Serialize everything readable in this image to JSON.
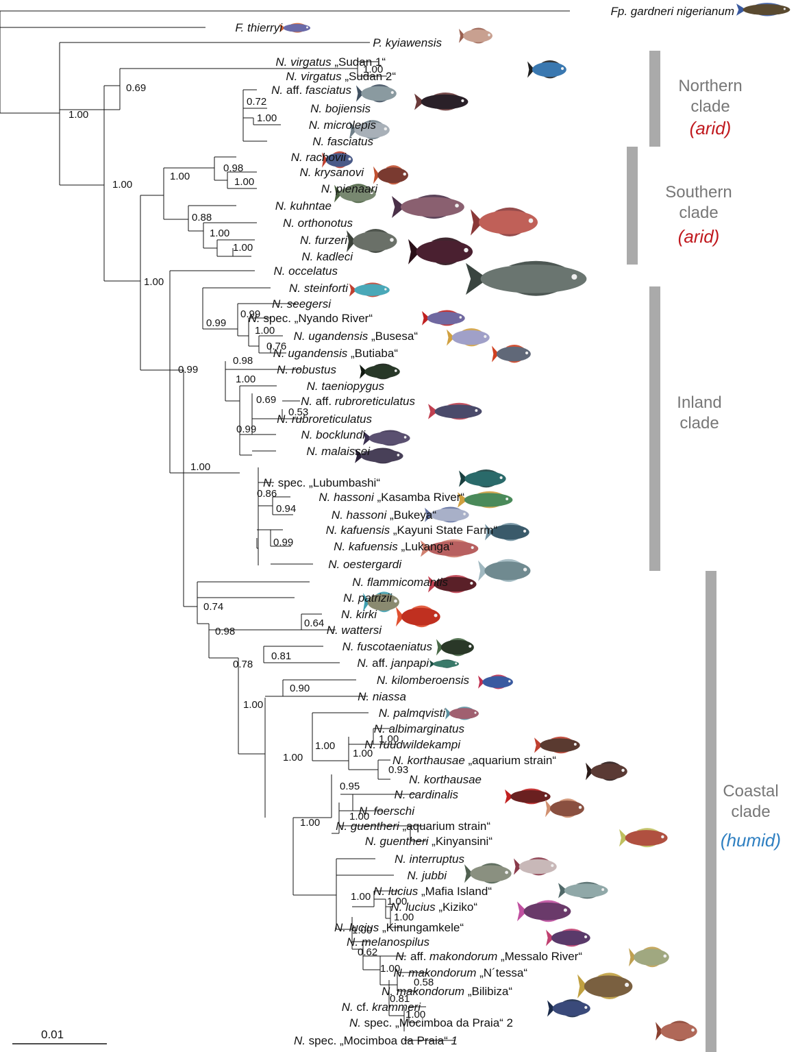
{
  "figure": {
    "scale_bar_label": "0.01",
    "colors": {
      "arid": "#c0191e",
      "humid": "#2e7fc1",
      "clade_bar": "#aaaaaa",
      "clade_label": "#777777"
    }
  },
  "taxa": [
    {
      "g": "Fp.",
      "e": "gardneri nigerianum",
      "q": ""
    },
    {
      "g": "F.",
      "e": "thierryi",
      "q": ""
    },
    {
      "g": "P.",
      "e": "kyiawensis",
      "q": ""
    },
    {
      "g": "N.",
      "e": "virgatus",
      "q": "„Sudan 1“"
    },
    {
      "g": "N.",
      "e": "virgatus",
      "q": "„Sudan 2“"
    },
    {
      "g": "N.",
      "e": "aff. fasciatus",
      "q": ""
    },
    {
      "g": "N.",
      "e": "bojiensis",
      "q": ""
    },
    {
      "g": "N.",
      "e": "microlepis",
      "q": ""
    },
    {
      "g": "N.",
      "e": "fasciatus",
      "q": ""
    },
    {
      "g": "N.",
      "e": "rachovii",
      "q": ""
    },
    {
      "g": "N.",
      "e": "krysanovi",
      "q": ""
    },
    {
      "g": "N.",
      "e": "pienaari",
      "q": ""
    },
    {
      "g": "N.",
      "e": "kuhntae",
      "q": ""
    },
    {
      "g": "N.",
      "e": "orthonotus",
      "q": ""
    },
    {
      "g": "N.",
      "e": "furzeri",
      "q": ""
    },
    {
      "g": "N.",
      "e": "kadleci",
      "q": ""
    },
    {
      "g": "N.",
      "e": "occelatus",
      "q": ""
    },
    {
      "g": "N.",
      "e": "steinforti",
      "q": ""
    },
    {
      "g": "N.",
      "e": "seegersi",
      "q": ""
    },
    {
      "g": "N.",
      "e": "spec.",
      "q": "„Nyando River“"
    },
    {
      "g": "N.",
      "e": "ugandensis",
      "q": "„Busesa“"
    },
    {
      "g": "N.",
      "e": "ugandensis",
      "q": "„Butiaba“"
    },
    {
      "g": "N.",
      "e": "robustus",
      "q": ""
    },
    {
      "g": "N.",
      "e": "taeniopygus",
      "q": ""
    },
    {
      "g": "N.",
      "e": "aff. rubroreticulatus",
      "q": ""
    },
    {
      "g": "N.",
      "e": "rubroreticulatus",
      "q": ""
    },
    {
      "g": "N.",
      "e": "bocklundi",
      "q": ""
    },
    {
      "g": "N.",
      "e": "malaissei",
      "q": ""
    },
    {
      "g": "N.",
      "e": "spec.",
      "q": "„Lubumbashi“"
    },
    {
      "g": "N.",
      "e": "hassoni",
      "q": "„Kasamba River“"
    },
    {
      "g": "N.",
      "e": "hassoni",
      "q": "„Bukeya“"
    },
    {
      "g": "N.",
      "e": "kafuensis",
      "q": "„Kayuni State Farm“"
    },
    {
      "g": "N.",
      "e": "kafuensis",
      "q": "„Lukanga“"
    },
    {
      "g": "N.",
      "e": "oestergardi",
      "q": ""
    },
    {
      "g": "N.",
      "e": "flammicomantis",
      "q": ""
    },
    {
      "g": "N.",
      "e": "patrizii",
      "q": ""
    },
    {
      "g": "N.",
      "e": "kirki",
      "q": ""
    },
    {
      "g": "N.",
      "e": "wattersi",
      "q": ""
    },
    {
      "g": "N.",
      "e": "fuscotaeniatus",
      "q": ""
    },
    {
      "g": "N.",
      "e": "aff. janpapi",
      "q": ""
    },
    {
      "g": "N.",
      "e": "kilomberoensis",
      "q": ""
    },
    {
      "g": "N.",
      "e": "niassa",
      "q": ""
    },
    {
      "g": "N.",
      "e": "palmqvisti",
      "q": ""
    },
    {
      "g": "N.",
      "e": "albimarginatus",
      "q": ""
    },
    {
      "g": "N.",
      "e": "ruudwildekampi",
      "q": ""
    },
    {
      "g": "N.",
      "e": "korthausae",
      "q": "„aquarium strain“"
    },
    {
      "g": "N.",
      "e": "korthausae",
      "q": ""
    },
    {
      "g": "N.",
      "e": "cardinalis",
      "q": ""
    },
    {
      "g": "N.",
      "e": "foerschi",
      "q": ""
    },
    {
      "g": "N.",
      "e": "guentheri",
      "q": "„aquarium strain“"
    },
    {
      "g": "N.",
      "e": "guentheri",
      "q": "„Kinyansini“"
    },
    {
      "g": "N.",
      "e": "interruptus",
      "q": ""
    },
    {
      "g": "N.",
      "e": "jubbi",
      "q": ""
    },
    {
      "g": "N.",
      "e": "lucius",
      "q": "„Mafia Island“"
    },
    {
      "g": "N.",
      "e": "lucius",
      "q": "„Kiziko“"
    },
    {
      "g": "N.",
      "e": "lucius",
      "q": "„Kinungamkele“"
    },
    {
      "g": "N.",
      "e": "melanospilus",
      "q": ""
    },
    {
      "g": "N.",
      "e": "aff. makondorum",
      "q": "„Messalo River“"
    },
    {
      "g": "N.",
      "e": "makondorum",
      "q": "„N´tessa“"
    },
    {
      "g": "N.",
      "e": "makondorum",
      "q": "„Bilibiza“"
    },
    {
      "g": "N.",
      "e": "cf. krammeri",
      "q": ""
    },
    {
      "g": "N.",
      "e": "spec.",
      "q": "„Mocimboa da Praia“ 2"
    },
    {
      "g": "N.",
      "e": "spec.",
      "q": "„Mocimboa da Praia“ 1"
    }
  ],
  "support_values": [
    "1.00",
    "0.69",
    "1.00",
    "0.72",
    "1.00",
    "1.00",
    "1.00",
    "0.98",
    "1.00",
    "0.88",
    "1.00",
    "1.00",
    "1.00",
    "0.99",
    "0.99",
    "0.99",
    "1.00",
    "0.76",
    "0.98",
    "1.00",
    "0.69",
    "0.53",
    "0.99",
    "0.86",
    "0.94",
    "0.99",
    "1.00",
    "0.74",
    "0.64",
    "0.98",
    "0.78",
    "0.81",
    "1.00",
    "0.90",
    "1.00",
    "1.00",
    "1.00",
    "1.00",
    "0.93",
    "0.95",
    "1.00",
    "1.00",
    "1.00",
    "1.00",
    "1.00",
    "1.00",
    "0.62",
    "1.00",
    "0.58",
    "0.81",
    "1.00"
  ],
  "clades": [
    {
      "line1": "Northern",
      "line2": "clade",
      "habitat": "(arid)",
      "type": "arid"
    },
    {
      "line1": "Southern",
      "line2": "clade",
      "habitat": "(arid)",
      "type": "arid"
    },
    {
      "line1": "Inland",
      "line2": "clade",
      "habitat": "",
      "type": ""
    },
    {
      "line1": "Coastal",
      "line2": "clade",
      "habitat": "(humid)",
      "type": "humid"
    }
  ]
}
